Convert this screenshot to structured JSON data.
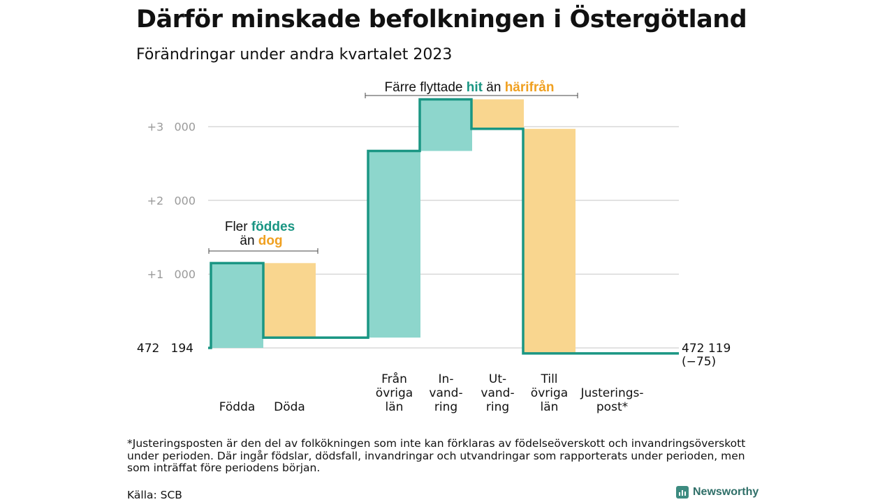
{
  "title": "Därför minskade befolkningen i Östergötland",
  "subtitle": "Förändringar under andra kvartalet 2023",
  "annotations": {
    "births_deaths": {
      "prefix": "Fler",
      "highlight1": "föddes",
      "middle": "än",
      "highlight2": "dog"
    },
    "migration": {
      "prefix": "Färre flyttade",
      "highlight1": "hit",
      "middle": "än",
      "highlight2": "härifrån"
    }
  },
  "chart_data": {
    "type": "waterfall",
    "start_value": 472194,
    "start_label": "472   194",
    "end_label": "472 119",
    "end_change_label": "(−75)",
    "y_ticks": [
      {
        "value": 1000,
        "label": "+1   000"
      },
      {
        "value": 2000,
        "label": "+2   000"
      },
      {
        "value": 3000,
        "label": "+3   000"
      }
    ],
    "ylim": [
      0,
      3300
    ],
    "grid": true,
    "steps": [
      {
        "label_lines": [
          "Födda"
        ],
        "delta": 1150,
        "color": "#8dd6cc"
      },
      {
        "label_lines": [
          "Döda"
        ],
        "delta": -1010,
        "color": "#f9d68f"
      },
      {
        "label_lines": [
          "",
          "",
          ""
        ],
        "delta": 0,
        "color": "#ffffff"
      },
      {
        "label_lines": [
          "Från",
          "övriga",
          "län"
        ],
        "delta": 2530,
        "color": "#8dd6cc"
      },
      {
        "label_lines": [
          "In-",
          "vand-",
          "ring"
        ],
        "delta": 700,
        "color": "#8dd6cc"
      },
      {
        "label_lines": [
          "Ut-",
          "vand-",
          "ring"
        ],
        "delta": -400,
        "color": "#f9d68f"
      },
      {
        "label_lines": [
          "Till",
          "övriga",
          "län"
        ],
        "delta": -3045,
        "color": "#f9d68f"
      },
      {
        "label_lines": [
          "Justerings-",
          "post*"
        ],
        "delta": 0,
        "color": "#8dd6cc"
      }
    ],
    "total_change": -75,
    "line_color": "#1a9683",
    "colors": {
      "increase": "#8dd6cc",
      "decrease": "#f9d68f",
      "line": "#1a9683",
      "grid": "#d9d9d9",
      "tick": "#9a9a9a"
    }
  },
  "footnote": "*Justeringsposten är den del av folkökningen som inte kan förklaras av födelseöverskott och invandringsöverskott under perioden. Där ingår födslar, dödsfall, invandringar och utvandringar som rapporterats under perioden, men som inträffat före periodens början.",
  "source": "Källa: SCB",
  "brand": {
    "name": "Newsworthy",
    "icon": "bar-chart-icon"
  }
}
